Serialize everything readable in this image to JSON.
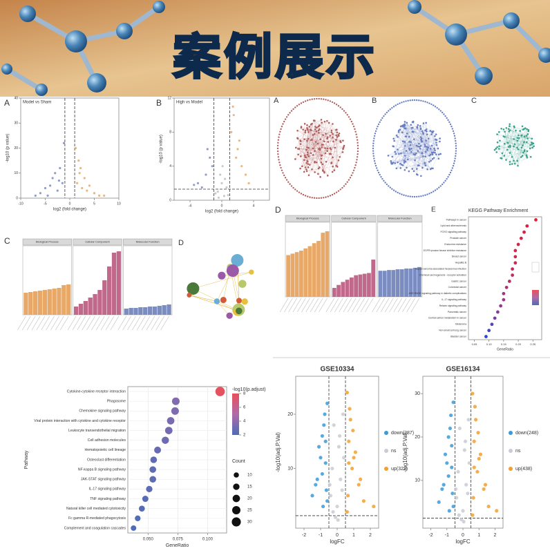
{
  "header": {
    "title": "案例展示"
  },
  "networks": [
    {
      "label": "A"
    },
    {
      "label": "B"
    },
    {
      "label": "C"
    },
    {
      "label": "D"
    }
  ],
  "chart_data": [
    {
      "type": "scatter",
      "label": "A",
      "title": "Model vs Sham",
      "xlabel": "log2 (fold change)",
      "ylabel": "-log10 (p value)",
      "xlim": [
        -10,
        10
      ],
      "ylim": [
        0,
        40
      ],
      "xticks": [
        -10,
        -5,
        0,
        5,
        10
      ],
      "yticks": [
        0,
        10,
        20,
        30,
        40
      ],
      "vlines": [
        -1,
        1
      ],
      "series": [
        {
          "color": "#7b8cc0",
          "x": [
            -6,
            -5,
            -4,
            -3.5,
            -3,
            -2.5,
            -2,
            -1.5,
            -1.2,
            -4.5,
            -7,
            -2.2
          ],
          "y": [
            2,
            4,
            5,
            8,
            10,
            3,
            12,
            6,
            22,
            1,
            1,
            7
          ]
        },
        {
          "color": "#e8a868",
          "x": [
            1.2,
            1.5,
            2,
            2.5,
            3,
            3.5,
            4,
            5,
            6,
            2.2,
            7,
            1.8
          ],
          "y": [
            20,
            6,
            10,
            4,
            8,
            3,
            5,
            2,
            1,
            12,
            1,
            15
          ]
        }
      ]
    },
    {
      "type": "scatter",
      "label": "B",
      "title": "High vs Model",
      "xlabel": "log2 (fold change)",
      "ylabel": "-log10 (p value)",
      "xlim": [
        -6,
        6
      ],
      "ylim": [
        0,
        12
      ],
      "xticks": [
        -4,
        0,
        4
      ],
      "yticks": [
        0,
        4,
        8,
        12
      ],
      "vlines": [
        -1,
        1
      ],
      "hline": 1.3,
      "series": [
        {
          "color": "#bfbfbf",
          "x": [
            -0.5,
            0,
            0.3,
            -0.2,
            0.6,
            -0.8,
            0.1,
            0.4,
            -0.4,
            0.8
          ],
          "y": [
            1,
            2,
            0.5,
            3,
            1.5,
            0.8,
            4,
            2.5,
            0.3,
            0.6
          ]
        },
        {
          "color": "#7b8cc0",
          "x": [
            -3,
            -2,
            -1.5,
            -2.5,
            -1.2,
            -1.8,
            -3.5
          ],
          "y": [
            2,
            3,
            5,
            1.5,
            4,
            6,
            1.8
          ]
        },
        {
          "color": "#e8a868",
          "x": [
            1.2,
            1.5,
            2,
            2.5,
            3,
            1.8,
            2.2,
            1.4,
            3.4
          ],
          "y": [
            8,
            10,
            6,
            4,
            3,
            5,
            7,
            11,
            2
          ]
        }
      ]
    },
    {
      "type": "bar",
      "label": "C",
      "ylim": [
        0,
        10
      ],
      "facets": [
        {
          "name": "Biological Process",
          "color": "#e8a868",
          "values": [
            3.2,
            3.3,
            3.4,
            3.5,
            3.6,
            3.7,
            3.8,
            3.9,
            4.3,
            4.4
          ]
        },
        {
          "name": "Cellular Component",
          "color": "#c0698a",
          "values": [
            1.2,
            1.6,
            2.0,
            2.5,
            3.0,
            3.6,
            5.0,
            7.0,
            9.0,
            9.2
          ]
        },
        {
          "name": "Molecular Function",
          "color": "#7b8cc0",
          "values": [
            0.9,
            1.0,
            1.0,
            1.1,
            1.1,
            1.2,
            1.2,
            1.3,
            1.4,
            1.5
          ]
        }
      ]
    },
    {
      "type": "bar",
      "label": "D",
      "ylim": [
        0,
        10
      ],
      "facets": [
        {
          "name": "Biological Process",
          "color": "#e8a868",
          "values": [
            5.6,
            5.8,
            6.0,
            6.2,
            6.5,
            6.8,
            7.2,
            7.5,
            8.6,
            8.8
          ]
        },
        {
          "name": "Cellular Component",
          "color": "#c0698a",
          "values": [
            1.2,
            1.6,
            2.0,
            2.3,
            2.6,
            2.9,
            3.0,
            3.1,
            3.2,
            5.0
          ]
        },
        {
          "name": "Molecular Function",
          "color": "#7b8cc0",
          "values": [
            3.5,
            3.5,
            3.6,
            3.6,
            3.7,
            3.7,
            3.8,
            3.8,
            3.9,
            4.0
          ]
        }
      ]
    },
    {
      "type": "dot",
      "label": "E",
      "title": "KEGG Pathway Enrichment",
      "xlabel": "GeneRatio",
      "xlim": [
        0.03,
        0.28
      ],
      "xticks": [
        0.05,
        {
          "value": 0.1,
          "label": "0.10"
        },
        0.15,
        {
          "value": 0.2,
          "label": "0.20"
        },
        0.25
      ],
      "categories": [
        "Pathways in cancer",
        "Lipid and atherosclerosis",
        "FOXO signaling pathway",
        "Prostate cancer",
        "Endocrine resistance",
        "EGFR tyrosine kinase inhibitor resistance",
        "Breast cancer",
        "Hepatitis B",
        "Kaposi sarcoma-associated herpesvirus infection",
        "Chemical carcinogenesis - receptor activation",
        "Gastric cancer",
        "Colorectal cancer",
        "AGE-RAGE signaling pathway in diabetic complications",
        "IL-17 signaling pathway",
        "Relaxin signaling pathway",
        "Pancreatic cancer",
        "Central carbon metabolism in cancer",
        "Melanoma",
        "Non-small cell lung cancer",
        "Bladder cancer"
      ],
      "values": [
        0.26,
        0.23,
        0.22,
        0.21,
        0.2,
        0.19,
        0.19,
        0.19,
        0.18,
        0.18,
        0.17,
        0.16,
        0.15,
        0.15,
        0.14,
        0.13,
        0.12,
        0.11,
        0.1,
        0.09
      ],
      "colors": [
        "#e0203a",
        "#d8203e",
        "#d42244",
        "#d02448",
        "#d0264a",
        "#cc284e",
        "#c82a54",
        "#c82a54",
        "#c42c58",
        "#be2e60",
        "#b83068",
        "#b03272",
        "#a8347c",
        "#a03686",
        "#963890",
        "#8a3a9c",
        "#7a3ca8",
        "#5c40b8",
        "#3c44c8",
        "#2a48d4"
      ]
    },
    {
      "type": "dot",
      "xlabel": "GeneRatio",
      "ylabel": "Pathway",
      "color_title": "-log10(p.adjust)",
      "size_title": "Count",
      "grid": true,
      "xlim": [
        0.033,
        0.116
      ],
      "xticks": [
        {
          "value": 0.05,
          "label": "0.050"
        },
        {
          "value": 0.075,
          "label": "0.075"
        },
        {
          "value": 0.1,
          "label": "0.100"
        }
      ],
      "color_ticks": [
        2,
        4,
        6,
        8
      ],
      "size_ticks": [
        10,
        15,
        20,
        25,
        30
      ],
      "categories": [
        "Cytokine-cytokine receptor interaction",
        "Phagosome",
        "Chemokine signaling pathway",
        "Viral protein interaction with cytokine and cytokine receptor",
        "Leukocyte transendothelial migration",
        "Cell adhesion molecules",
        "Hematopoietic cell lineage",
        "Osteoclast differentiation",
        "NF-kappa B signaling pathway",
        "JAK-STAT signaling pathway",
        "IL-17 signaling pathway",
        "TNF signaling pathway",
        "Natural killer cell mediated cytotoxicity",
        "Fc gamma R-mediated phagocytosis",
        "Complement and coagulation cascades"
      ],
      "values": [
        0.1105,
        0.0733,
        0.0727,
        0.069,
        0.0674,
        0.0645,
        0.058,
        0.0547,
        0.054,
        0.054,
        0.051,
        0.0477,
        0.0448,
        0.0413,
        0.0378
      ],
      "counts": [
        32,
        21,
        21,
        20,
        20,
        19,
        17,
        16,
        16,
        16,
        15,
        14,
        13,
        12,
        11
      ],
      "padj": [
        7.8,
        3.6,
        3.5,
        3.4,
        3.2,
        3.0,
        2.8,
        2.6,
        2.6,
        2.6,
        2.5,
        2.4,
        2.3,
        2.2,
        2.1
      ]
    },
    {
      "type": "scatter",
      "title": "GSE10334",
      "xlabel": "logFC",
      "ylabel": "-log10(adj.P.Val)",
      "xlim": [
        -2.5,
        2.5
      ],
      "ylim": [
        -1,
        27
      ],
      "xticks": [
        -2,
        -1,
        0,
        1,
        2
      ],
      "yticks": [
        10,
        20
      ],
      "vlines": [
        -0.5,
        0.5
      ],
      "hline": 1.3,
      "series": [
        {
          "name": "down(287)",
          "color": "#3a9ad9",
          "x": [
            -0.6,
            -0.8,
            -0.7,
            -1.0,
            -0.9,
            -1.2,
            -0.65,
            -1.5,
            -0.75,
            -1.1,
            -0.85,
            -0.7,
            -1.3,
            -0.9,
            -0.6
          ],
          "y": [
            22,
            18,
            15,
            12,
            9,
            8,
            6,
            5,
            20,
            14,
            3,
            11,
            7,
            16,
            4
          ]
        },
        {
          "name": "ns",
          "color": "#c8ccd4",
          "x": [
            -0.3,
            0.2,
            0.1,
            -0.4,
            0.4,
            0,
            -0.2,
            0.3,
            -0.1,
            0.35,
            -0.45,
            0.15,
            0.05,
            -0.25
          ],
          "y": [
            10,
            8,
            14,
            5,
            12,
            3,
            18,
            6,
            1,
            20,
            7,
            16,
            0.5,
            2
          ]
        },
        {
          "name": "up(322)",
          "color": "#f0a030",
          "x": [
            0.6,
            0.8,
            0.7,
            1.0,
            0.9,
            1.3,
            0.65,
            1.6,
            0.75,
            1.1,
            2.2,
            0.7,
            1.4,
            0.95,
            0.6
          ],
          "y": [
            24,
            19,
            15,
            12,
            10,
            7,
            5,
            4,
            21,
            13,
            3,
            11,
            8,
            17,
            2
          ]
        }
      ]
    },
    {
      "type": "scatter",
      "title": "GSE16134",
      "xlabel": "logFC",
      "ylabel": "-log10(adj.P.Val)",
      "xlim": [
        -2.5,
        2.5
      ],
      "ylim": [
        -1,
        34
      ],
      "xticks": [
        -2,
        -1,
        0,
        1,
        2
      ],
      "yticks": [
        10,
        20,
        30
      ],
      "vlines": [
        -0.5,
        0.5
      ],
      "hline": 1.3,
      "series": [
        {
          "name": "down(248)",
          "color": "#3a9ad9",
          "x": [
            -0.6,
            -0.8,
            -0.7,
            -1.0,
            -0.9,
            -1.2,
            -0.65,
            -1.5,
            -0.75,
            -1.1,
            -0.85,
            -0.7,
            -1.3,
            -0.9,
            -0.6
          ],
          "y": [
            28,
            22,
            18,
            14,
            11,
            9,
            7,
            5,
            25,
            16,
            3,
            13,
            8,
            20,
            4
          ]
        },
        {
          "name": "ns",
          "color": "#c8ccd4",
          "x": [
            -0.3,
            0.2,
            0.1,
            -0.4,
            0.4,
            0,
            -0.2,
            0.3,
            -0.1,
            0.35,
            -0.45,
            0.15,
            0.05,
            -0.25
          ],
          "y": [
            12,
            9,
            17,
            6,
            14,
            3,
            22,
            7,
            1,
            24,
            8,
            19,
            0.5,
            2
          ]
        },
        {
          "name": "up(438)",
          "color": "#f0a030",
          "x": [
            0.6,
            0.8,
            0.7,
            1.0,
            0.9,
            1.3,
            0.65,
            1.6,
            0.75,
            1.1,
            2.1,
            0.7,
            1.4,
            0.95,
            0.6
          ],
          "y": [
            30,
            24,
            19,
            15,
            12,
            8,
            6,
            4,
            27,
            16,
            3,
            13,
            9,
            21,
            2
          ]
        }
      ]
    }
  ]
}
